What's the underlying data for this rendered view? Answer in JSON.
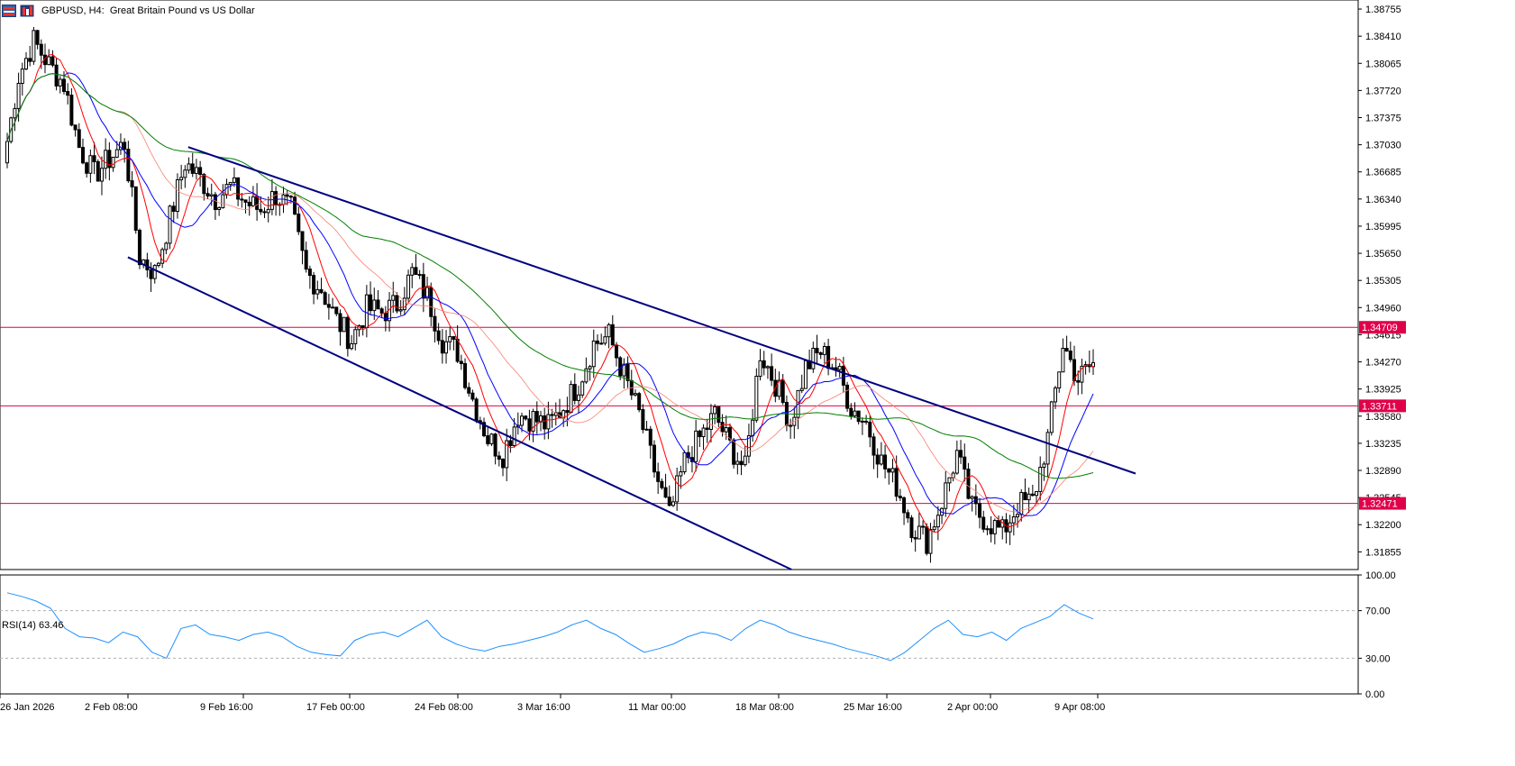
{
  "header": {
    "symbol": "GBPUSD, H4:",
    "description": "Great Britain Pound vs US Dollar",
    "icons": [
      "chart-grid-icon",
      "chart-bars-icon"
    ]
  },
  "colors": {
    "background": "#ffffff",
    "candle": "#000000",
    "ma_fast": "#ff0000",
    "ma_mid": "#0000ff",
    "ma_slow": "#fa8072",
    "ma_long": "#008000",
    "channel": "#000080",
    "hline": "#e0004a",
    "rsi": "#1e90ff"
  },
  "chart_data": [
    {
      "type": "candlestick",
      "title": "GBPUSD, H4:  Great Britain Pound vs US Dollar",
      "ylim": [
        1.3163,
        1.3887
      ],
      "y_ticks": [
        "1.38755",
        "1.38410",
        "1.38065",
        "1.37720",
        "1.37375",
        "1.37030",
        "1.36685",
        "1.36340",
        "1.35995",
        "1.35650",
        "1.35305",
        "1.34960",
        "1.34615",
        "1.34270",
        "1.33925",
        "1.33580",
        "1.33235",
        "1.32890",
        "1.32545",
        "1.32200",
        "1.31855"
      ],
      "x_ticks": [
        "26 Jan 2026",
        "2 Feb 08:00",
        "9 Feb 16:00",
        "17 Feb 00:00",
        "24 Feb 08:00",
        "3 Mar 16:00",
        "11 Mar 00:00",
        "18 Mar 08:00",
        "25 Mar 16:00",
        "2 Apr 00:00",
        "9 Apr 08:00"
      ],
      "close_path": [
        [
          "26 Jan 2026",
          1.368
        ],
        [
          "27 Jan",
          1.379
        ],
        [
          "28 Jan",
          1.3835
        ],
        [
          "29 Jan",
          1.3805
        ],
        [
          "30 Jan",
          1.378
        ],
        [
          "2 Feb 08:00",
          1.37
        ],
        [
          "3 Feb",
          1.3665
        ],
        [
          "4 Feb",
          1.3685
        ],
        [
          "5 Feb",
          1.3705
        ],
        [
          "6 Feb",
          1.356
        ],
        [
          "7 Feb",
          1.354
        ],
        [
          "8 Feb",
          1.361
        ],
        [
          "9 Feb 16:00",
          1.368
        ],
        [
          "10 Feb",
          1.366
        ],
        [
          "11 Feb",
          1.3635
        ],
        [
          "12 Feb",
          1.365
        ],
        [
          "13 Feb",
          1.363
        ],
        [
          "14 Feb",
          1.362
        ],
        [
          "15 Feb",
          1.364
        ],
        [
          "16 Feb",
          1.362
        ],
        [
          "17 Feb 00:00",
          1.354
        ],
        [
          "18 Feb",
          1.352
        ],
        [
          "19 Feb",
          1.348
        ],
        [
          "20 Feb",
          1.3455
        ],
        [
          "21 Feb",
          1.3495
        ],
        [
          "22 Feb",
          1.349
        ],
        [
          "23 Feb",
          1.35
        ],
        [
          "24 Feb 08:00",
          1.354
        ],
        [
          "25 Feb",
          1.351
        ],
        [
          "26 Feb",
          1.3455
        ],
        [
          "27 Feb",
          1.344
        ],
        [
          "28 Feb",
          1.338
        ],
        [
          "1 Mar",
          1.333
        ],
        [
          "2 Mar",
          1.331
        ],
        [
          "3 Mar 16:00",
          1.336
        ],
        [
          "4 Mar",
          1.3355
        ],
        [
          "5 Mar",
          1.3345
        ],
        [
          "6 Mar",
          1.337
        ],
        [
          "7 Mar",
          1.34
        ],
        [
          "8 Mar",
          1.345
        ],
        [
          "9 Mar",
          1.346
        ],
        [
          "10 Mar",
          1.341
        ],
        [
          "11 Mar 00:00",
          1.336
        ],
        [
          "12 Mar",
          1.329
        ],
        [
          "13 Mar",
          1.323
        ],
        [
          "14 Mar",
          1.33
        ],
        [
          "15 Mar",
          1.333
        ],
        [
          "16 Mar",
          1.336
        ],
        [
          "17 Mar",
          1.332
        ],
        [
          "18 Mar 08:00",
          1.329
        ],
        [
          "19 Mar",
          1.344
        ],
        [
          "20 Mar",
          1.34
        ],
        [
          "21 Mar",
          1.335
        ],
        [
          "22 Mar",
          1.342
        ],
        [
          "23 Mar",
          1.344
        ],
        [
          "24 Mar",
          1.342
        ],
        [
          "25 Mar 16:00",
          1.337
        ],
        [
          "26 Mar",
          1.335
        ],
        [
          "27 Mar",
          1.33
        ],
        [
          "28 Mar",
          1.327
        ],
        [
          "29 Mar",
          1.322
        ],
        [
          "30 Mar",
          1.32
        ],
        [
          "31 Mar",
          1.325
        ],
        [
          "1 Apr",
          1.331
        ],
        [
          "2 Apr 00:00",
          1.324
        ],
        [
          "3 Apr",
          1.3225
        ],
        [
          "4 Apr",
          1.321
        ],
        [
          "5 Apr",
          1.3245
        ],
        [
          "6 Apr",
          1.325
        ],
        [
          "7 Apr",
          1.333
        ],
        [
          "8 Apr",
          1.345
        ],
        [
          "9 Apr 08:00",
          1.3405
        ],
        [
          "9 Apr 16:00",
          1.3425
        ]
      ],
      "indicators": [
        "MA fast (red)",
        "MA mid (blue)",
        "MA slow (salmon)",
        "MA long (green)"
      ],
      "horizontal_lines": [
        {
          "label": "1.34709",
          "value": 1.34709
        },
        {
          "label": "1.33711",
          "value": 1.33711
        },
        {
          "label": "1.32471",
          "value": 1.32471
        }
      ],
      "channel_lines": [
        {
          "name": "upper",
          "from": [
            "9 Feb 16:00",
            1.37
          ],
          "to": [
            "11 Apr",
            1.3285
          ]
        },
        {
          "name": "lower",
          "from": [
            "5 Feb",
            1.356
          ],
          "to": [
            "21 Mar",
            1.3163
          ]
        }
      ]
    },
    {
      "type": "line",
      "title": "RSI(14) 63.46",
      "series_label": "RSI(14)",
      "last_value": 63.46,
      "ylim": [
        0,
        100
      ],
      "y_ticks": [
        "100.00",
        "70.00",
        "30.00",
        "0.00"
      ],
      "levels": [
        70,
        30
      ],
      "values": [
        85,
        82,
        78,
        72,
        55,
        48,
        47,
        43,
        52,
        48,
        35,
        30,
        55,
        58,
        50,
        48,
        45,
        50,
        52,
        48,
        40,
        35,
        33,
        32,
        45,
        50,
        52,
        48,
        55,
        62,
        48,
        42,
        38,
        36,
        40,
        42,
        45,
        48,
        52,
        58,
        62,
        55,
        50,
        42,
        35,
        38,
        42,
        48,
        52,
        50,
        45,
        55,
        62,
        58,
        52,
        48,
        45,
        42,
        38,
        35,
        32,
        28,
        35,
        45,
        55,
        62,
        50,
        48,
        52,
        45,
        55,
        60,
        65,
        75,
        68,
        63
      ]
    }
  ]
}
